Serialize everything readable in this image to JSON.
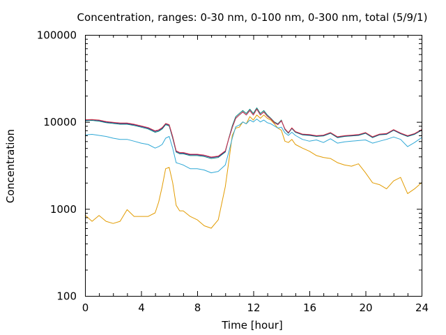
{
  "chart_data": {
    "type": "line",
    "title": "Concentration, ranges: 0-30 nm, 0-100 nm, 0-300 nm, total (5/9/1)",
    "xlabel": "Time [hour]",
    "ylabel": "Concentration",
    "xlim": [
      0,
      24
    ],
    "ylim": [
      100,
      100000
    ],
    "yscale": "log",
    "grid": false,
    "legend": "none",
    "xticks": [
      0,
      4,
      8,
      12,
      16,
      20,
      24
    ],
    "xtick_labels": [
      "0",
      "4",
      "8",
      "12",
      "16",
      "20",
      "24"
    ],
    "yticks": [
      100,
      1000,
      10000,
      100000
    ],
    "ytick_labels": [
      "100",
      "1000",
      "10000",
      "100000"
    ],
    "x": [
      0,
      0.5,
      1,
      1.5,
      2,
      2.5,
      3,
      3.5,
      4,
      4.5,
      5,
      5.25,
      5.5,
      5.75,
      6,
      6.25,
      6.5,
      6.75,
      7,
      7.5,
      8,
      8.5,
      9,
      9.5,
      10,
      10.25,
      10.5,
      10.75,
      11,
      11.25,
      11.5,
      11.75,
      12,
      12.25,
      12.5,
      12.75,
      13,
      13.25,
      13.5,
      13.75,
      14,
      14.25,
      14.5,
      14.75,
      15,
      15.5,
      16,
      16.5,
      17,
      17.5,
      18,
      18.5,
      19,
      19.5,
      20,
      20.5,
      21,
      21.5,
      22,
      22.5,
      23,
      23.5,
      24
    ],
    "series": [
      {
        "color": "#e29b00",
        "values": [
          850,
          720,
          840,
          720,
          680,
          720,
          980,
          820,
          820,
          820,
          900,
          1200,
          1800,
          2900,
          3000,
          2000,
          1100,
          950,
          950,
          820,
          750,
          640,
          600,
          750,
          1800,
          3500,
          7000,
          8500,
          8700,
          10000,
          9500,
          11500,
          10500,
          12000,
          11000,
          12000,
          11000,
          10500,
          9500,
          8500,
          8000,
          6000,
          5800,
          6300,
          5500,
          5000,
          4600,
          4100,
          3900,
          3800,
          3400,
          3200,
          3100,
          3300,
          2600,
          2000,
          1900,
          1700,
          2100,
          2300,
          1500,
          1700,
          2000
        ]
      },
      {
        "color": "#2fa8d6",
        "values": [
          7100,
          7200,
          7000,
          6800,
          6500,
          6300,
          6300,
          6000,
          5700,
          5500,
          5000,
          5200,
          5500,
          6500,
          6800,
          5000,
          3400,
          3300,
          3200,
          2900,
          2900,
          2800,
          2600,
          2700,
          3200,
          4500,
          6500,
          8800,
          9200,
          10000,
          9500,
          10500,
          10000,
          10800,
          10000,
          10500,
          9800,
          9500,
          9000,
          8500,
          8700,
          7500,
          7000,
          7600,
          7000,
          6300,
          6000,
          6200,
          5800,
          6400,
          5700,
          5900,
          6000,
          6100,
          6200,
          5700,
          6000,
          6300,
          6700,
          6300,
          5200,
          5800,
          6600
        ]
      },
      {
        "color": "#00857f",
        "values": [
          10300,
          10400,
          10200,
          9800,
          9600,
          9400,
          9400,
          9100,
          8700,
          8300,
          7600,
          7800,
          8300,
          9300,
          9000,
          6500,
          4500,
          4300,
          4300,
          4100,
          4100,
          4000,
          3800,
          3900,
          4500,
          6500,
          9000,
          11500,
          12500,
          13500,
          12500,
          14000,
          12500,
          14500,
          12500,
          13500,
          12000,
          11000,
          10000,
          9500,
          10500,
          8200,
          7400,
          8400,
          7600,
          7100,
          7000,
          6800,
          6900,
          7400,
          6600,
          6800,
          6900,
          7000,
          7400,
          6600,
          7100,
          7200,
          8000,
          7300,
          6800,
          7200,
          8000
        ]
      },
      {
        "color": "#2b007f",
        "values": [
          10500,
          10600,
          10400,
          10000,
          9800,
          9600,
          9600,
          9300,
          8900,
          8500,
          7800,
          8000,
          8500,
          9500,
          9200,
          6700,
          4600,
          4400,
          4400,
          4200,
          4200,
          4100,
          3900,
          4000,
          4600,
          6400,
          8600,
          11000,
          12000,
          13000,
          12000,
          13500,
          12000,
          14000,
          12000,
          13000,
          11600,
          10800,
          9800,
          9300,
          10300,
          8300,
          7500,
          8500,
          7700,
          7200,
          7100,
          6900,
          7000,
          7500,
          6700,
          6900,
          7000,
          7100,
          7500,
          6700,
          7200,
          7300,
          8100,
          7400,
          6900,
          7300,
          8100
        ]
      },
      {
        "color": "#d63b4a",
        "values": [
          10600,
          10650,
          10500,
          10100,
          9900,
          9700,
          9700,
          9400,
          9000,
          8600,
          7900,
          8100,
          8600,
          9600,
          9300,
          6800,
          4650,
          4450,
          4450,
          4250,
          4250,
          4150,
          3950,
          4050,
          4650,
          6450,
          8650,
          11050,
          12050,
          13050,
          12050,
          13550,
          12050,
          14050,
          12050,
          13050,
          11650,
          10850,
          9850,
          9350,
          10350,
          8350,
          7550,
          8550,
          7750,
          7250,
          7150,
          6950,
          7050,
          7550,
          6750,
          6950,
          7050,
          7150,
          7550,
          6750,
          7250,
          7350,
          8150,
          7450,
          6950,
          7350,
          8150
        ]
      }
    ]
  }
}
